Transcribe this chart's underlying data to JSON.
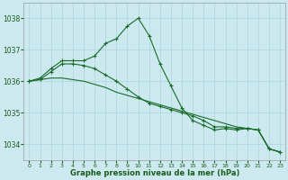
{
  "background_color": "#cce9f0",
  "grid_color": "#b0d8e0",
  "line_color": "#1a6b2a",
  "text_color": "#1a5c1a",
  "xlabel": "Graphe pression niveau de la mer (hPa)",
  "xlim": [
    -0.5,
    23.5
  ],
  "ylim": [
    1033.5,
    1038.5
  ],
  "yticks": [
    1034,
    1035,
    1036,
    1037,
    1038
  ],
  "xticks": [
    0,
    1,
    2,
    3,
    4,
    5,
    6,
    7,
    8,
    9,
    10,
    11,
    12,
    13,
    14,
    15,
    16,
    17,
    18,
    19,
    20,
    21,
    22,
    23
  ],
  "series": [
    {
      "x": [
        0,
        1,
        2,
        3,
        4,
        5,
        6,
        7,
        8,
        9,
        10,
        11,
        12,
        13,
        14,
        15,
        16,
        17,
        18,
        19,
        20,
        21,
        22,
        23
      ],
      "y": [
        1036.0,
        1036.1,
        1036.4,
        1036.65,
        1036.65,
        1036.65,
        1036.8,
        1037.2,
        1037.35,
        1037.75,
        1038.0,
        1037.45,
        1036.55,
        1035.85,
        1035.15,
        1034.75,
        1034.6,
        1034.45,
        1034.5,
        1034.45,
        1034.5,
        1034.45,
        1033.85,
        1033.75
      ],
      "marker": true
    },
    {
      "x": [
        0,
        1,
        2,
        3,
        4,
        5,
        6,
        7,
        8,
        9,
        10,
        11,
        12,
        13,
        14,
        15,
        16,
        17,
        18,
        19,
        20,
        21,
        22,
        23
      ],
      "y": [
        1036.0,
        1036.05,
        1036.1,
        1036.1,
        1036.05,
        1036.0,
        1035.9,
        1035.8,
        1035.65,
        1035.55,
        1035.45,
        1035.35,
        1035.25,
        1035.15,
        1035.05,
        1034.95,
        1034.85,
        1034.75,
        1034.65,
        1034.55,
        1034.5,
        1034.45,
        1033.85,
        1033.75
      ],
      "marker": false
    },
    {
      "x": [
        0,
        1,
        2,
        3,
        4,
        5,
        6,
        7,
        8,
        9,
        10,
        11,
        12,
        13,
        14,
        15,
        16,
        17,
        18,
        19,
        20,
        21,
        22,
        23
      ],
      "y": [
        1036.0,
        1036.05,
        1036.3,
        1036.55,
        1036.55,
        1036.5,
        1036.4,
        1036.2,
        1036.0,
        1035.75,
        1035.5,
        1035.3,
        1035.2,
        1035.1,
        1035.0,
        1034.9,
        1034.75,
        1034.55,
        1034.55,
        1034.5,
        1034.5,
        1034.45,
        1033.85,
        1033.75
      ],
      "marker": true
    }
  ]
}
